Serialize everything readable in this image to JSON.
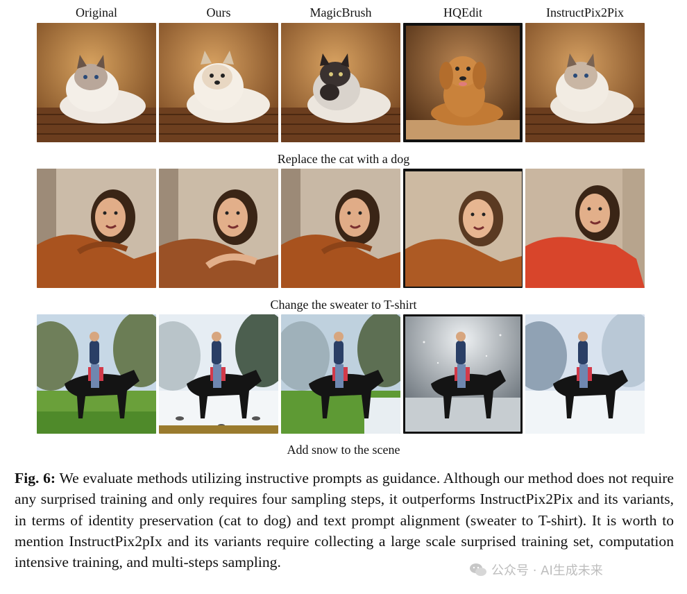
{
  "columns": [
    "Original",
    "Ours",
    "MagicBrush",
    "HQEdit",
    "InstructPix2Pix"
  ],
  "rows": [
    {
      "prompt": "Replace the cat with a dog",
      "theme": "pet"
    },
    {
      "prompt": "Change the sweater to T-shirt",
      "theme": "portrait"
    },
    {
      "prompt": "Add snow to the scene",
      "theme": "horse"
    }
  ],
  "caption": {
    "lead": "Fig. 6:",
    "text": " We evaluate methods utilizing instructive prompts as guidance. Although our method does not require any surprised training and only requires four sampling steps, it outperforms InstructPix2Pix and its variants, in terms of identity preservation (cat to dog) and text prompt alignment (sweater to T-shirt). It is worth to mention InstructPix2pIx and its variants require collecting a large scale surprised training set, computation intensive training, and multi-steps sampling."
  },
  "watermark": {
    "icon": "wechat-icon",
    "text": "公众号 · AI生成未来"
  },
  "colors": {
    "text": "#111111",
    "background": "#ffffff"
  }
}
